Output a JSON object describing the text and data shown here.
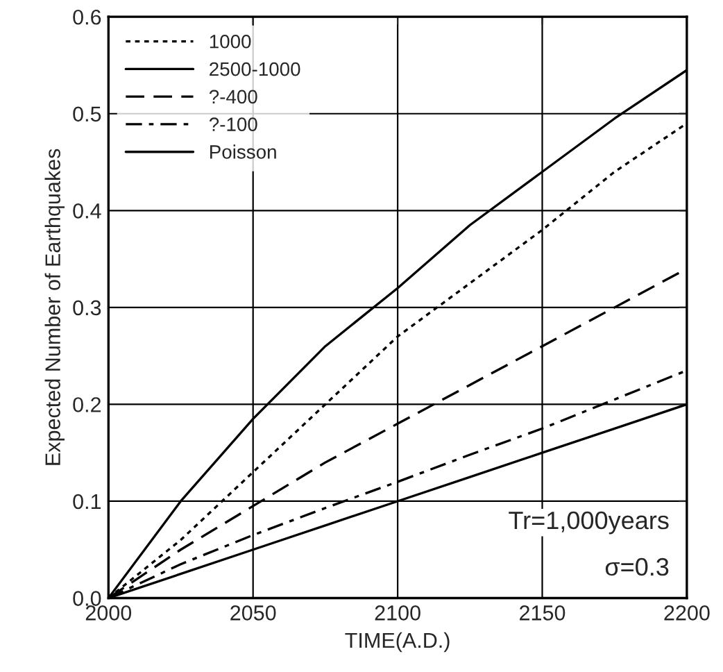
{
  "chart_data": {
    "type": "line",
    "xlabel": "TIME(A.D.)",
    "ylabel": "Expected Number of Earthquakes",
    "xlim": [
      2000,
      2200
    ],
    "xticks": [
      2000,
      2050,
      2100,
      2150,
      2200
    ],
    "ylim": [
      0,
      0.6
    ],
    "yticks": [
      {
        "value": 0,
        "label": "0.0"
      },
      {
        "value": 0.1,
        "label": "0.1"
      },
      {
        "value": 0.2,
        "label": "0.2"
      },
      {
        "value": 0.3,
        "label": "0.3"
      },
      {
        "value": 0.4,
        "label": "0.4"
      },
      {
        "value": 0.5,
        "label": "0.5"
      },
      {
        "value": 0.6,
        "label": "0.6"
      }
    ],
    "grid": true,
    "legend": "top left",
    "marker": "none",
    "x": [
      2000,
      2025,
      2050,
      2075,
      2100,
      2125,
      2150,
      2175,
      2200
    ],
    "series": [
      {
        "name": "1000",
        "color": "#000000",
        "line_style": "dotted",
        "values": [
          0,
          0.06,
          0.13,
          0.2,
          0.27,
          0.325,
          0.38,
          0.44,
          0.49
        ]
      },
      {
        "name": "2500-1000",
        "color": "#000000",
        "line_style": "solid",
        "values": [
          0,
          0.1,
          0.185,
          0.26,
          0.32,
          0.385,
          0.44,
          0.495,
          0.545
        ]
      },
      {
        "name": "?-400",
        "color": "#000000",
        "line_style": "dashed",
        "values": [
          0,
          0.05,
          0.095,
          0.14,
          0.18,
          0.22,
          0.26,
          0.3,
          0.34
        ]
      },
      {
        "name": "?-100",
        "color": "#000000",
        "line_style": "dashdot",
        "values": [
          0,
          0.035,
          0.065,
          0.093,
          0.12,
          0.148,
          0.175,
          0.205,
          0.235
        ]
      },
      {
        "name": "Poisson",
        "color": "#000000",
        "line_style": "solid",
        "values": [
          0,
          0.025,
          0.05,
          0.075,
          0.1,
          0.125,
          0.15,
          0.175,
          0.2
        ]
      }
    ],
    "annotations": [
      "Tr=1,000years",
      "σ=0.3"
    ]
  }
}
